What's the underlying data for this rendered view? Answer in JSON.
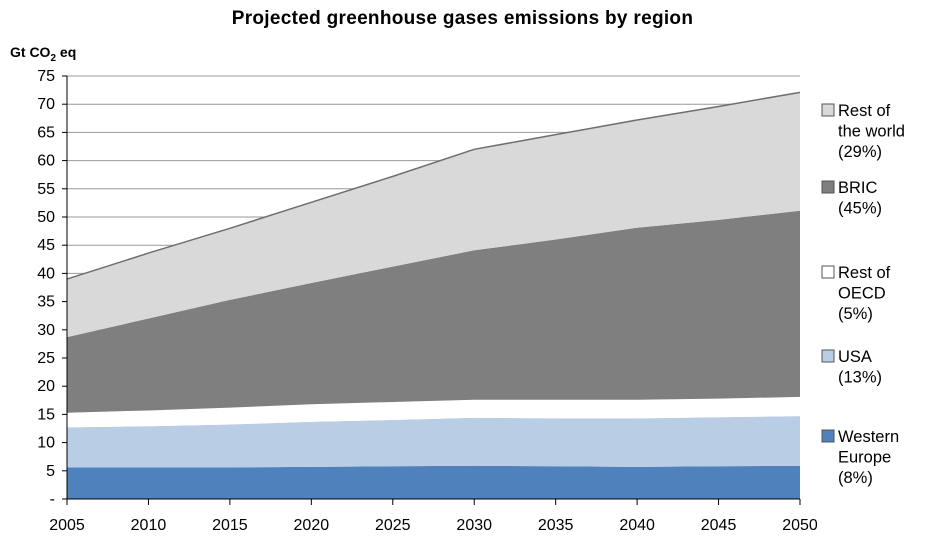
{
  "chart_data": {
    "type": "area",
    "stacked": true,
    "title": "Projected greenhouse gases emissions by region",
    "y_unit": {
      "main": "Gt CO",
      "sub": "2",
      "suffix": " eq"
    },
    "ylim": [
      0,
      75
    ],
    "yticks": [
      0,
      5,
      10,
      15,
      20,
      25,
      30,
      35,
      40,
      45,
      50,
      55,
      60,
      65,
      70,
      75
    ],
    "ytick_labels": [
      "-",
      "5",
      "10",
      "15",
      "20",
      "25",
      "30",
      "35",
      "40",
      "45",
      "50",
      "55",
      "60",
      "65",
      "70",
      "75"
    ],
    "x": [
      2005,
      2010,
      2015,
      2020,
      2025,
      2030,
      2035,
      2040,
      2045,
      2050
    ],
    "xtick_labels": [
      "2005",
      "2010",
      "2015",
      "2020",
      "2025",
      "2030",
      "2035",
      "2040",
      "2045",
      "2050"
    ],
    "grid": "horizontal",
    "legend_position": "right",
    "series": [
      {
        "name": "Western Europe",
        "share": "(8%)",
        "color": "#4f81bd",
        "values": [
          5.6,
          5.6,
          5.6,
          5.7,
          5.8,
          5.9,
          5.8,
          5.7,
          5.8,
          5.9
        ]
      },
      {
        "name": "USA",
        "share": "(13%)",
        "color": "#b9cde5",
        "values": [
          7.1,
          7.3,
          7.6,
          8.0,
          8.2,
          8.5,
          8.5,
          8.6,
          8.7,
          8.8
        ]
      },
      {
        "name": "Rest of OECD",
        "share": "(5%)",
        "color": "#ffffff",
        "values": [
          2.6,
          2.8,
          3.0,
          3.1,
          3.2,
          3.2,
          3.3,
          3.3,
          3.3,
          3.4
        ]
      },
      {
        "name": "BRIC",
        "share": "(45%)",
        "color": "#7f7f7f",
        "values": [
          13.4,
          16.3,
          19.1,
          21.5,
          24.0,
          26.5,
          28.4,
          30.5,
          31.7,
          33.0
        ]
      },
      {
        "name": "Rest of the world",
        "share": "(29%)",
        "color": "#d9d9d9",
        "values": [
          10.3,
          11.6,
          12.7,
          14.3,
          16.0,
          17.9,
          18.6,
          19.1,
          20.1,
          21.0
        ]
      }
    ],
    "legend": [
      {
        "lines": [
          "Rest of",
          "the world",
          "(29%)"
        ],
        "color": "#d9d9d9"
      },
      {
        "lines": [
          "BRIC",
          "(45%)"
        ],
        "color": "#7f7f7f"
      },
      {
        "lines": [
          "Rest of",
          "OECD",
          "(5%)"
        ],
        "color": "#ffffff"
      },
      {
        "lines": [
          "USA",
          "(13%)"
        ],
        "color": "#b9cde5"
      },
      {
        "lines": [
          "Western",
          "Europe",
          "(8%)"
        ],
        "color": "#4f81bd"
      }
    ]
  }
}
